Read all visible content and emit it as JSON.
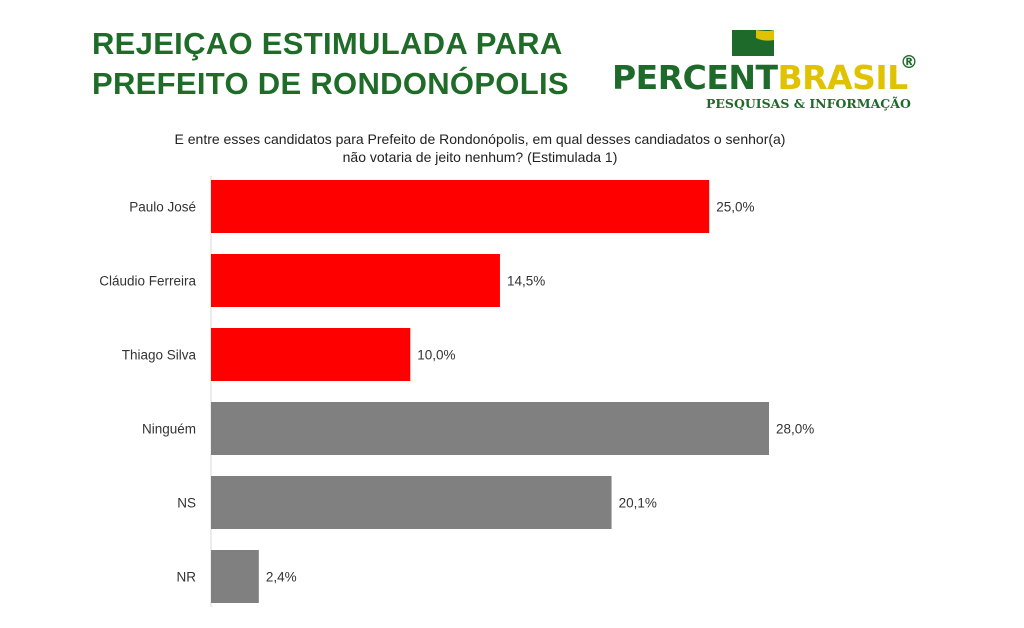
{
  "title": {
    "line1": "REJEIÇAO ESTIMULADA PARA",
    "line2": "PREFEITO DE RONDONÓPOLIS"
  },
  "logo": {
    "word_part1": "PERCENT",
    "word_part2": "BRASIL",
    "registered": "®",
    "tagline": "PESQUISAS & INFORMAÇÃO",
    "colors": {
      "green": "#1e6a2a",
      "yellow": "#e0c200"
    }
  },
  "question": {
    "line1": "E entre esses candidatos para Prefeito de Rondonópolis, em qual desses candiadatos o senhor(a)",
    "line2": "não votaria de jeito nenhum? (Estimulada 1)"
  },
  "chart_data": {
    "type": "bar",
    "orientation": "horizontal",
    "categories": [
      "Paulo José",
      "Cláudio Ferreira",
      "Thiago Silva",
      "Ninguém",
      "NS",
      "NR"
    ],
    "values": [
      25.0,
      14.5,
      10.0,
      28.0,
      20.1,
      2.4
    ],
    "value_labels": [
      "25,0%",
      "14,5%",
      "10,0%",
      "28,0%",
      "20,1%",
      "2,4%"
    ],
    "bar_colors": [
      "#ff0000",
      "#ff0000",
      "#ff0000",
      "#808080",
      "#808080",
      "#808080"
    ],
    "xlim": [
      0,
      28.0
    ],
    "grid": false,
    "legend": "none"
  }
}
